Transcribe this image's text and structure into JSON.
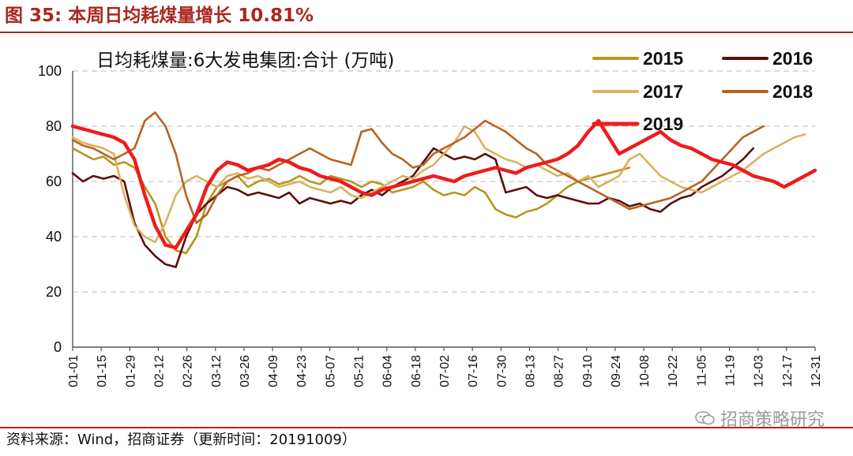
{
  "header": {
    "figure_label": "图 35:",
    "title": "本周日均耗煤量增长 10.81%"
  },
  "footer": {
    "source": "资料来源：Wind，招商证券（更新时间：20191009）",
    "watermark": "招商策略研究"
  },
  "colors": {
    "accent": "#a8271f",
    "s2015": "#b5961f",
    "s2016": "#5c0d0d",
    "s2017": "#d9b25f",
    "s2018": "#b8621e",
    "s2019": "#ee1c1c",
    "grid": "#c8c8c8"
  },
  "chart_data": {
    "type": "line",
    "title": "日均耗煤量:6大发电集团:合计 (万吨)",
    "xlabel": "",
    "ylabel": "",
    "ylim": [
      0,
      100
    ],
    "yticks": [
      0,
      20,
      40,
      60,
      80,
      100
    ],
    "xticks": [
      "01-01",
      "01-15",
      "01-29",
      "02-12",
      "02-26",
      "03-12",
      "03-26",
      "04-09",
      "04-23",
      "05-07",
      "05-21",
      "06-04",
      "06-18",
      "07-02",
      "07-16",
      "07-30",
      "08-13",
      "08-27",
      "09-10",
      "09-24",
      "10-08",
      "10-22",
      "11-05",
      "11-19",
      "12-03",
      "12-17",
      "12-31"
    ],
    "grid": "horizontal dashed",
    "legend_position": "top-right",
    "series": [
      {
        "name": "2015",
        "color": "#b5961f",
        "values": [
          72,
          70,
          68,
          69,
          66,
          67,
          65,
          58,
          52,
          40,
          35,
          34,
          40,
          52,
          58,
          60,
          62,
          58,
          60,
          61,
          59,
          60,
          62,
          60,
          59,
          62,
          61,
          60,
          58,
          60,
          59,
          56,
          57,
          58,
          60,
          57,
          55,
          56,
          55,
          58,
          56,
          50,
          48,
          47,
          49,
          50,
          52,
          55,
          58,
          60,
          61,
          62,
          63,
          64,
          65
        ]
      },
      {
        "name": "2016",
        "color": "#5c0d0d",
        "values": [
          63,
          60,
          62,
          61,
          62,
          60,
          45,
          37,
          33,
          30,
          29,
          40,
          48,
          52,
          55,
          58,
          57,
          55,
          56,
          55,
          54,
          56,
          52,
          54,
          53,
          52,
          53,
          52,
          55,
          57,
          55,
          58,
          60,
          62,
          67,
          72,
          70,
          68,
          69,
          68,
          70,
          68,
          56,
          57,
          58,
          55,
          54,
          55,
          54,
          53,
          52,
          52,
          54,
          53,
          51,
          52,
          50,
          49,
          52,
          54,
          55,
          58,
          60,
          62,
          65,
          68,
          72
        ]
      },
      {
        "name": "2017",
        "color": "#d9b25f",
        "values": [
          76,
          74,
          73,
          72,
          70,
          55,
          44,
          40,
          38,
          45,
          55,
          60,
          62,
          60,
          58,
          62,
          63,
          61,
          62,
          60,
          58,
          59,
          60,
          58,
          57,
          56,
          58,
          55,
          54,
          56,
          58,
          60,
          62,
          61,
          64,
          66,
          70,
          74,
          80,
          78,
          72,
          70,
          68,
          67,
          65,
          66,
          64,
          62,
          63,
          60,
          62,
          58,
          60,
          62,
          68,
          70,
          66,
          62,
          60,
          58,
          57,
          56,
          58,
          60,
          62,
          64,
          67,
          70,
          72,
          74,
          76,
          77
        ]
      },
      {
        "name": "2018",
        "color": "#b8621e",
        "values": [
          75,
          73,
          72,
          70,
          68,
          70,
          72,
          82,
          85,
          80,
          70,
          55,
          45,
          48,
          55,
          60,
          62,
          63,
          65,
          64,
          66,
          68,
          70,
          72,
          70,
          68,
          67,
          66,
          78,
          79,
          74,
          70,
          68,
          65,
          66,
          70,
          72,
          74,
          76,
          79,
          82,
          80,
          78,
          75,
          72,
          70,
          66,
          64,
          62,
          60,
          58,
          56,
          54,
          52,
          50,
          51,
          52,
          53,
          54,
          56,
          58,
          60,
          64,
          68,
          72,
          76,
          78,
          80
        ]
      },
      {
        "name": "2019",
        "color": "#ee1c1c",
        "values": [
          80,
          79,
          78,
          77,
          76,
          74,
          68,
          55,
          44,
          37,
          36,
          42,
          48,
          58,
          64,
          67,
          66,
          64,
          65,
          66,
          68,
          67,
          65,
          64,
          62,
          61,
          60,
          58,
          56,
          55,
          57,
          58,
          59,
          60,
          61,
          62,
          61,
          60,
          62,
          63,
          64,
          65,
          64,
          63,
          65,
          66,
          67,
          68,
          70,
          73,
          78,
          82,
          76,
          70,
          72,
          74,
          76,
          78,
          75,
          73,
          72,
          70,
          68,
          67,
          66,
          64,
          62,
          61,
          60,
          58,
          60,
          62,
          64
        ]
      }
    ]
  }
}
